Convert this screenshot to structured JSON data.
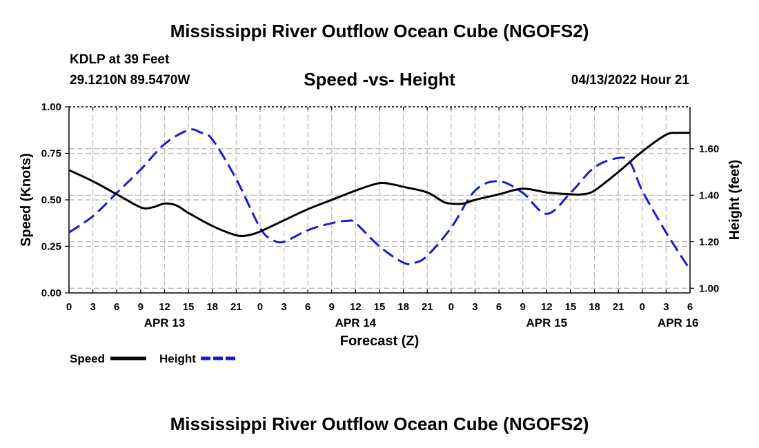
{
  "header": {
    "title": "Mississippi River Outflow Ocean Cube (NGOFS2)",
    "title_repeat": "Mississippi River Outflow Ocean Cube (NGOFS2)",
    "station": "KDLP at 39 Feet",
    "coords": "29.1210N  89.5470W",
    "run_time": "04/13/2022 Hour 21"
  },
  "chart_data": {
    "type": "line",
    "title": "Speed -vs- Height",
    "xlabel": "Forecast (Z)",
    "ylabel_left": "Speed (Knots)",
    "ylabel_right": "Height (feet)",
    "x_unit": "hours since APR 13 00Z",
    "xlim": [
      0,
      78
    ],
    "x_ticks": [
      0,
      3,
      6,
      9,
      12,
      15,
      18,
      21,
      24,
      27,
      30,
      33,
      36,
      39,
      42,
      45,
      48,
      51,
      54,
      57,
      60,
      63,
      66,
      69,
      72,
      75,
      78
    ],
    "x_tick_labels": [
      "0",
      "3",
      "6",
      "9",
      "12",
      "15",
      "18",
      "21",
      "0",
      "3",
      "6",
      "9",
      "12",
      "15",
      "18",
      "21",
      "0",
      "3",
      "6",
      "9",
      "12",
      "15",
      "18",
      "21",
      "0",
      "3",
      "6"
    ],
    "date_labels": [
      {
        "x": 12,
        "label": "APR 13"
      },
      {
        "x": 36,
        "label": "APR 14"
      },
      {
        "x": 60,
        "label": "APR 15"
      },
      {
        "x": 76.5,
        "label": "APR 16"
      }
    ],
    "ylim_left": [
      0,
      1
    ],
    "y_ticks_left": [
      "0.00",
      "0.25",
      "0.50",
      "0.75",
      "1.00"
    ],
    "ylim_right": [
      0.98,
      1.78
    ],
    "y_ticks_right": [
      "1.00",
      "1.20",
      "1.40",
      "1.60"
    ],
    "grid": true,
    "legend": {
      "position": "bottom-left"
    },
    "series": [
      {
        "name": "Speed",
        "axis": "left",
        "color": "#000000",
        "dash": "solid",
        "x": [
          0,
          3,
          6,
          9,
          10.5,
          12,
          13.5,
          15,
          18,
          21,
          22.5,
          24,
          27,
          30,
          33,
          36,
          39,
          41,
          42,
          45,
          47,
          48,
          49.5,
          51,
          54,
          57,
          60,
          63,
          64.5,
          66,
          69,
          72,
          75,
          76.5,
          78
        ],
        "values": [
          0.66,
          0.6,
          0.53,
          0.46,
          0.46,
          0.48,
          0.47,
          0.43,
          0.36,
          0.31,
          0.31,
          0.33,
          0.39,
          0.45,
          0.5,
          0.55,
          0.59,
          0.58,
          0.57,
          0.54,
          0.49,
          0.48,
          0.48,
          0.5,
          0.53,
          0.56,
          0.54,
          0.53,
          0.53,
          0.55,
          0.65,
          0.76,
          0.85,
          0.86,
          0.86
        ]
      },
      {
        "name": "Height",
        "axis": "right",
        "color": "#1a1ad6",
        "dash": "dashed",
        "x": [
          0,
          3,
          6,
          9,
          12,
          15,
          16.5,
          18,
          21,
          24,
          25.5,
          27,
          30,
          33,
          35,
          36,
          39,
          42,
          43.5,
          45,
          48,
          51,
          54,
          57,
          60,
          63,
          66,
          69,
          70.5,
          72,
          75,
          78
        ],
        "values": [
          1.24,
          1.31,
          1.41,
          1.51,
          1.62,
          1.68,
          1.67,
          1.64,
          1.47,
          1.26,
          1.21,
          1.2,
          1.25,
          1.28,
          1.29,
          1.28,
          1.18,
          1.11,
          1.11,
          1.14,
          1.26,
          1.42,
          1.46,
          1.41,
          1.32,
          1.41,
          1.52,
          1.56,
          1.54,
          1.42,
          1.24,
          1.08
        ]
      }
    ]
  }
}
